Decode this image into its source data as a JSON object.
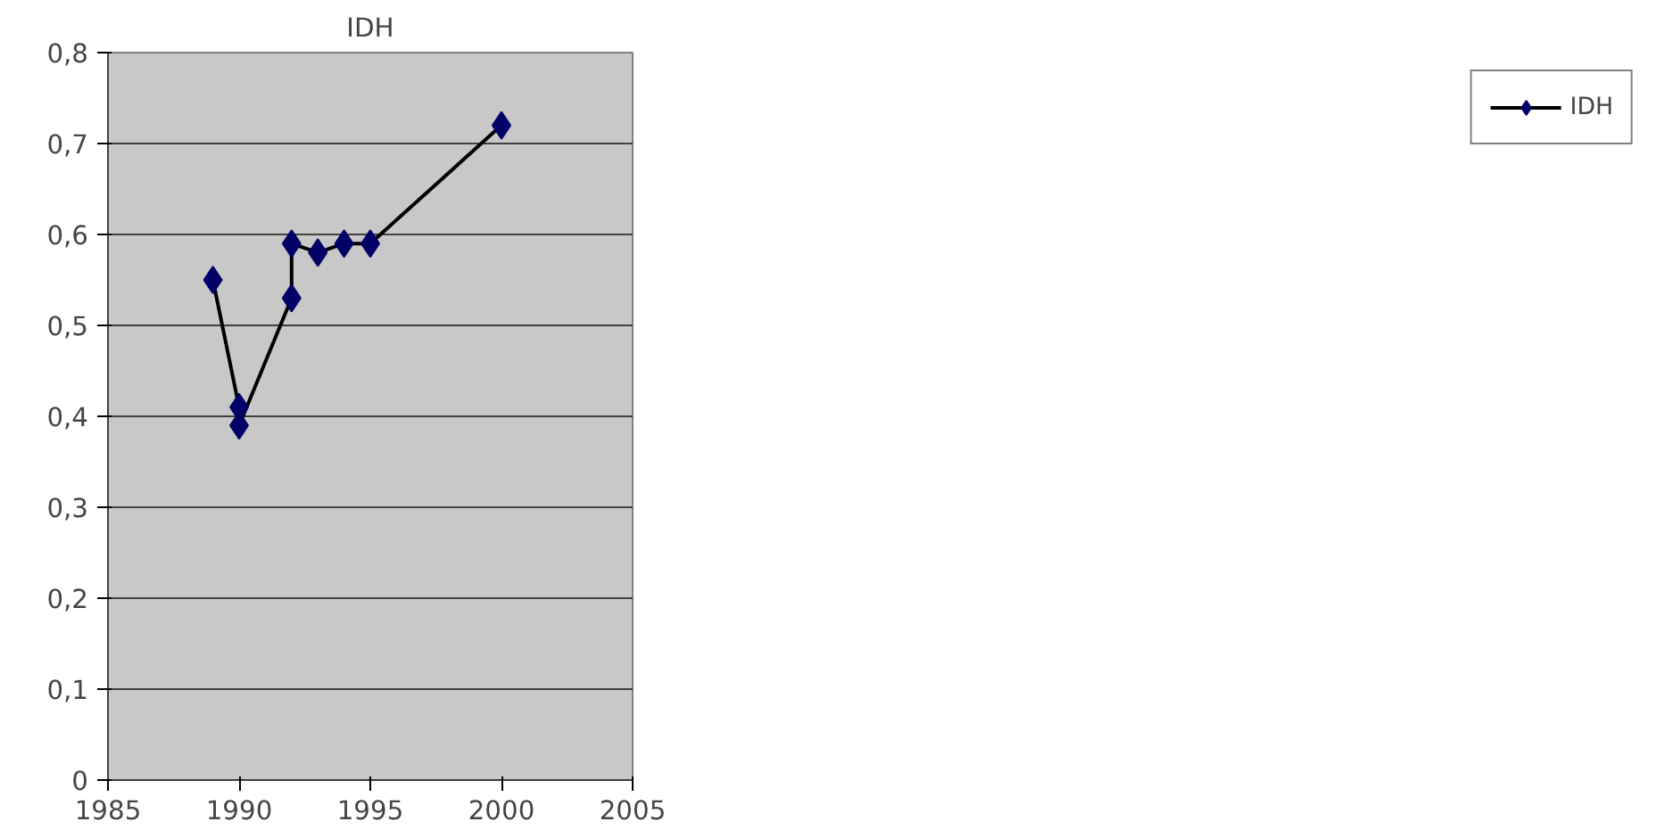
{
  "chart_data": {
    "type": "line",
    "title": "IDH",
    "x": [
      1989,
      1990,
      1990,
      1992,
      1992,
      1993,
      1994,
      1995,
      2000
    ],
    "series": [
      {
        "name": "IDH",
        "color": "#000066",
        "values": [
          0.55,
          0.41,
          0.39,
          0.53,
          0.59,
          0.58,
          0.59,
          0.59,
          0.72
        ]
      }
    ],
    "xlim": [
      1985,
      2005
    ],
    "xticks": [
      1985,
      1990,
      1995,
      2000,
      2005
    ],
    "ylim": [
      0,
      0.8
    ],
    "yticks": [
      {
        "value": 0,
        "label": "0"
      },
      {
        "value": 0.1,
        "label": "0,1"
      },
      {
        "value": 0.2,
        "label": "0,2"
      },
      {
        "value": 0.3,
        "label": "0,3"
      },
      {
        "value": 0.4,
        "label": "0,4"
      },
      {
        "value": 0.5,
        "label": "0,5"
      },
      {
        "value": 0.6,
        "label": "0,6"
      },
      {
        "value": 0.7,
        "label": "0,7"
      },
      {
        "value": 0.8,
        "label": "0,8"
      }
    ],
    "grid": "y",
    "legend": "right",
    "marker": "diamond",
    "line_style": "solid"
  }
}
